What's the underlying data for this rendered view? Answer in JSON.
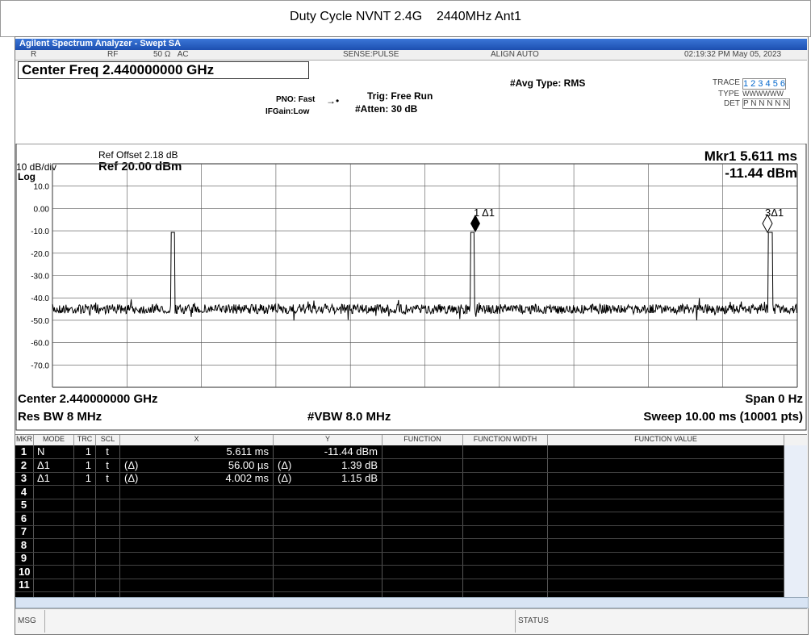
{
  "title": "Duty Cycle NVNT 2.4G    2440MHz Ant1",
  "window": {
    "title": "Agilent Spectrum Analyzer - Swept SA",
    "status": {
      "mode": "R",
      "rf": "RF",
      "input": "50 Ω   AC",
      "sense": "SENSE:PULSE",
      "align": "ALIGN AUTO",
      "time": "02:19:32 PM May 05, 2023"
    },
    "center_freq": "Center Freq 2.440000000 GHz",
    "pno": "PNO: Fast",
    "ifgain": "IFGain:Low",
    "trig": "Trig: Free Run",
    "atten": "#Atten: 30 dB",
    "avg": "#Avg Type: RMS",
    "trace": {
      "trace_label": "TRACE",
      "trace": "1 2 3 4 5 6",
      "type_label": "TYPE",
      "type": "WWWWWW",
      "det_label": "DET",
      "det": "P N N N N N"
    }
  },
  "plot": {
    "ref_offset": "Ref Offset 2.18 dB",
    "scale": "10 dB/div",
    "ref": "Ref 20.00 dBm",
    "log": "Log",
    "marker_x": "Mkr1 5.611 ms",
    "marker_y": "-11.44 dBm",
    "y_labels": [
      "10.0",
      "0.00",
      "-10.0",
      "-20.0",
      "-30.0",
      "-40.0",
      "-50.0",
      "-60.0",
      "-70.0"
    ],
    "marker_labels": [
      "1 Δ1",
      "3Δ1"
    ],
    "center": "Center 2.440000000 GHz",
    "span": "Span 0 Hz",
    "rbw": "Res BW 8 MHz",
    "vbw": "#VBW 8.0 MHz",
    "sweep": "Sweep  10.00 ms (10001 pts)"
  },
  "table": {
    "headers": [
      "MKR",
      "MODE",
      "TRC",
      "SCL",
      "X",
      "Y",
      "FUNCTION",
      "FUNCTION WIDTH",
      "FUNCTION VALUE"
    ],
    "rows": [
      {
        "mkr": "1",
        "mode": "N",
        "trc": "1",
        "scl": "t",
        "x": "5.611 ms",
        "y": "-11.44 dBm"
      },
      {
        "mkr": "2",
        "mode": "Δ1",
        "trc": "1",
        "scl": "t",
        "x_ref": "(Δ)",
        "x": "56.00 µs",
        "y_ref": "(Δ)",
        "y": "1.39 dB"
      },
      {
        "mkr": "3",
        "mode": "Δ1",
        "trc": "1",
        "scl": "t",
        "x_ref": "(Δ)",
        "x": "4.002 ms",
        "y_ref": "(Δ)",
        "y": "1.15 dB"
      },
      {
        "mkr": "4"
      },
      {
        "mkr": "5"
      },
      {
        "mkr": "6"
      },
      {
        "mkr": "7"
      },
      {
        "mkr": "8"
      },
      {
        "mkr": "9"
      },
      {
        "mkr": "10"
      },
      {
        "mkr": "11"
      }
    ]
  },
  "footer": {
    "msg": "MSG",
    "status": "STATUS"
  }
}
